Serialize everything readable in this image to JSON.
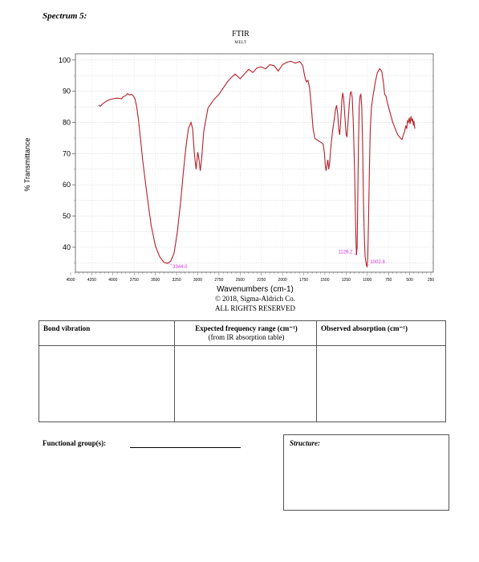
{
  "page": {
    "heading": "Spectrum 5:"
  },
  "chart_data": {
    "type": "line",
    "title": "FTIR",
    "subtitle": "MELT",
    "xlabel": "Wavenumbers (cm-1)",
    "ylabel": "% Transmittance",
    "xlim": [
      4500,
      250
    ],
    "ylim": [
      32,
      102
    ],
    "x_ticks": [
      "4500",
      "4250",
      "4000",
      "3750",
      "3500",
      "3250",
      "3000",
      "2750",
      "2500",
      "2250",
      "2000",
      "1750",
      "1500",
      "1250",
      "1000",
      "750",
      "500",
      "250"
    ],
    "y_ticks": [
      "100",
      "90",
      "80",
      "70",
      "60",
      "50",
      "40"
    ],
    "grid": true,
    "line_color": "#b5202a",
    "annotation_color": "#d633d6",
    "annotations": [
      {
        "label": "3344.0",
        "x": 3344.0,
        "y": 34.8
      },
      {
        "label": "1126.2",
        "x": 1126.2,
        "y": 37.5
      },
      {
        "label": "1002.8",
        "x": 1002.8,
        "y": 33.8
      }
    ],
    "series": [
      {
        "points": [
          [
            4170,
            85.5
          ],
          [
            4150,
            85.2
          ],
          [
            4120,
            86.0
          ],
          [
            4080,
            86.8
          ],
          [
            4040,
            87.3
          ],
          [
            4000,
            87.6
          ],
          [
            3950,
            87.8
          ],
          [
            3900,
            87.6
          ],
          [
            3880,
            88.2
          ],
          [
            3850,
            88.6
          ],
          [
            3830,
            89.2
          ],
          [
            3800,
            88.8
          ],
          [
            3780,
            89.0
          ],
          [
            3760,
            88.5
          ],
          [
            3740,
            87.5
          ],
          [
            3720,
            85.0
          ],
          [
            3700,
            81.0
          ],
          [
            3680,
            76.0
          ],
          [
            3650,
            68.0
          ],
          [
            3600,
            57.0
          ],
          [
            3550,
            47.0
          ],
          [
            3500,
            40.5
          ],
          [
            3450,
            37.0
          ],
          [
            3400,
            35.2
          ],
          [
            3360,
            34.8
          ],
          [
            3320,
            35.5
          ],
          [
            3280,
            38.0
          ],
          [
            3240,
            45.0
          ],
          [
            3200,
            55.0
          ],
          [
            3170,
            64.0
          ],
          [
            3140,
            72.0
          ],
          [
            3110,
            78.0
          ],
          [
            3080,
            80.0
          ],
          [
            3060,
            78.0
          ],
          [
            3040,
            70.0
          ],
          [
            3020,
            65.0
          ],
          [
            3000,
            70.5
          ],
          [
            2985,
            68.0
          ],
          [
            2970,
            64.5
          ],
          [
            2955,
            68.0
          ],
          [
            2930,
            77.0
          ],
          [
            2880,
            84.5
          ],
          [
            2820,
            87.0
          ],
          [
            2750,
            89.0
          ],
          [
            2700,
            91.0
          ],
          [
            2650,
            93.0
          ],
          [
            2600,
            94.5
          ],
          [
            2560,
            95.5
          ],
          [
            2500,
            94.0
          ],
          [
            2450,
            95.5
          ],
          [
            2400,
            97.0
          ],
          [
            2350,
            96.0
          ],
          [
            2300,
            97.5
          ],
          [
            2250,
            97.8
          ],
          [
            2200,
            97.2
          ],
          [
            2150,
            98.5
          ],
          [
            2100,
            98.2
          ],
          [
            2050,
            96.5
          ],
          [
            2000,
            98.5
          ],
          [
            1950,
            99.3
          ],
          [
            1900,
            99.6
          ],
          [
            1850,
            99.0
          ],
          [
            1800,
            99.5
          ],
          [
            1780,
            99.0
          ],
          [
            1760,
            98.0
          ],
          [
            1740,
            95.0
          ],
          [
            1720,
            93.0
          ],
          [
            1700,
            93.5
          ],
          [
            1680,
            91.0
          ],
          [
            1660,
            85.0
          ],
          [
            1640,
            78.0
          ],
          [
            1620,
            75.0
          ],
          [
            1600,
            74.5
          ],
          [
            1570,
            74.0
          ],
          [
            1540,
            73.5
          ],
          [
            1520,
            73.0
          ],
          [
            1505,
            70.0
          ],
          [
            1495,
            66.0
          ],
          [
            1485,
            64.5
          ],
          [
            1475,
            66.5
          ],
          [
            1465,
            68.0
          ],
          [
            1455,
            65.0
          ],
          [
            1445,
            67.0
          ],
          [
            1430,
            72.0
          ],
          [
            1410,
            77.0
          ],
          [
            1390,
            81.0
          ],
          [
            1375,
            84.0
          ],
          [
            1362,
            85.5
          ],
          [
            1350,
            83.0
          ],
          [
            1338,
            78.0
          ],
          [
            1325,
            76.0
          ],
          [
            1315,
            80.0
          ],
          [
            1300,
            87.0
          ],
          [
            1290,
            89.5
          ],
          [
            1280,
            88.0
          ],
          [
            1265,
            82.0
          ],
          [
            1250,
            76.0
          ],
          [
            1240,
            75.5
          ],
          [
            1230,
            79.0
          ],
          [
            1215,
            85.0
          ],
          [
            1200,
            89.5
          ],
          [
            1190,
            89.8
          ],
          [
            1178,
            88.0
          ],
          [
            1165,
            80.0
          ],
          [
            1150,
            65.0
          ],
          [
            1140,
            50.0
          ],
          [
            1132,
            41.0
          ],
          [
            1127,
            37.5
          ],
          [
            1120,
            40.0
          ],
          [
            1112,
            55.0
          ],
          [
            1105,
            72.0
          ],
          [
            1095,
            85.0
          ],
          [
            1085,
            88.5
          ],
          [
            1075,
            89.0
          ],
          [
            1065,
            85.0
          ],
          [
            1055,
            72.0
          ],
          [
            1045,
            55.0
          ],
          [
            1035,
            43.0
          ],
          [
            1025,
            37.0
          ],
          [
            1010,
            34.2
          ],
          [
            1003,
            33.8
          ],
          [
            995,
            36.0
          ],
          [
            985,
            48.0
          ],
          [
            975,
            65.0
          ],
          [
            965,
            78.0
          ],
          [
            950,
            85.0
          ],
          [
            930,
            89.0
          ],
          [
            905,
            93.0
          ],
          [
            880,
            96.0
          ],
          [
            855,
            97.2
          ],
          [
            830,
            96.5
          ],
          [
            810,
            93.0
          ],
          [
            795,
            89.0
          ],
          [
            780,
            88.5
          ],
          [
            760,
            86.0
          ],
          [
            730,
            83.0
          ],
          [
            700,
            80.0
          ],
          [
            670,
            78.0
          ],
          [
            640,
            76.0
          ],
          [
            610,
            75.0
          ],
          [
            590,
            74.5
          ],
          [
            575,
            76.0
          ],
          [
            560,
            77.0
          ],
          [
            545,
            79.0
          ],
          [
            535,
            78.0
          ],
          [
            525,
            80.5
          ],
          [
            515,
            80.0
          ],
          [
            505,
            81.5
          ],
          [
            495,
            79.5
          ],
          [
            485,
            82.0
          ],
          [
            475,
            80.5
          ],
          [
            465,
            81.0
          ],
          [
            455,
            79.0
          ],
          [
            450,
            80.5
          ],
          [
            445,
            79.2
          ],
          [
            438,
            78.0
          ]
        ]
      }
    ]
  },
  "copyright": {
    "line1": "© 2018, Sigma-Aldrich Co.",
    "line2": "ALL RIGHTS RESERVED"
  },
  "table": {
    "col1": "Bond vibration",
    "col2": "Expected frequency range (cm⁻¹)",
    "col2_sub": "(from IR absorption table)",
    "col3": "Observed absorption (cm⁻¹)"
  },
  "functional_group_label": "Functional group(s):",
  "structure_label": "Structure:"
}
